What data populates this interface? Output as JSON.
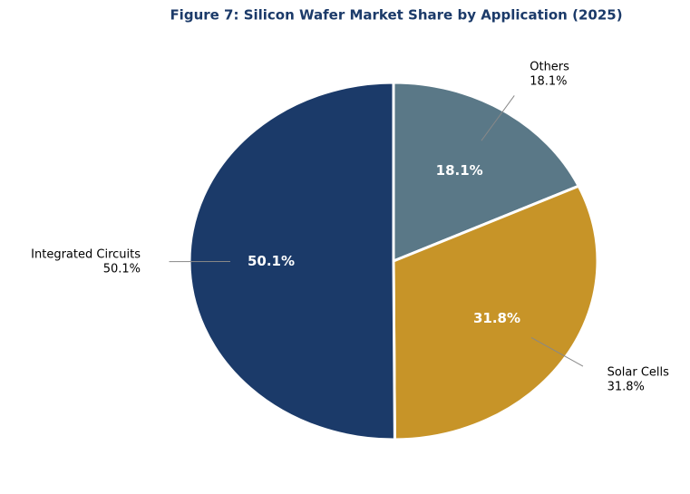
{
  "chart_data": {
    "type": "pie",
    "title": "Figure 7: Silicon Wafer Market Share by Application (2025)",
    "categories": [
      "Others",
      "Solar Cells",
      "Integrated Circuits"
    ],
    "values": [
      18.1,
      31.8,
      50.1
    ],
    "value_labels": [
      "18.1%",
      "31.8%",
      "50.1%"
    ],
    "colors": [
      "#5a7887",
      "#c79428",
      "#1b3a69"
    ]
  }
}
